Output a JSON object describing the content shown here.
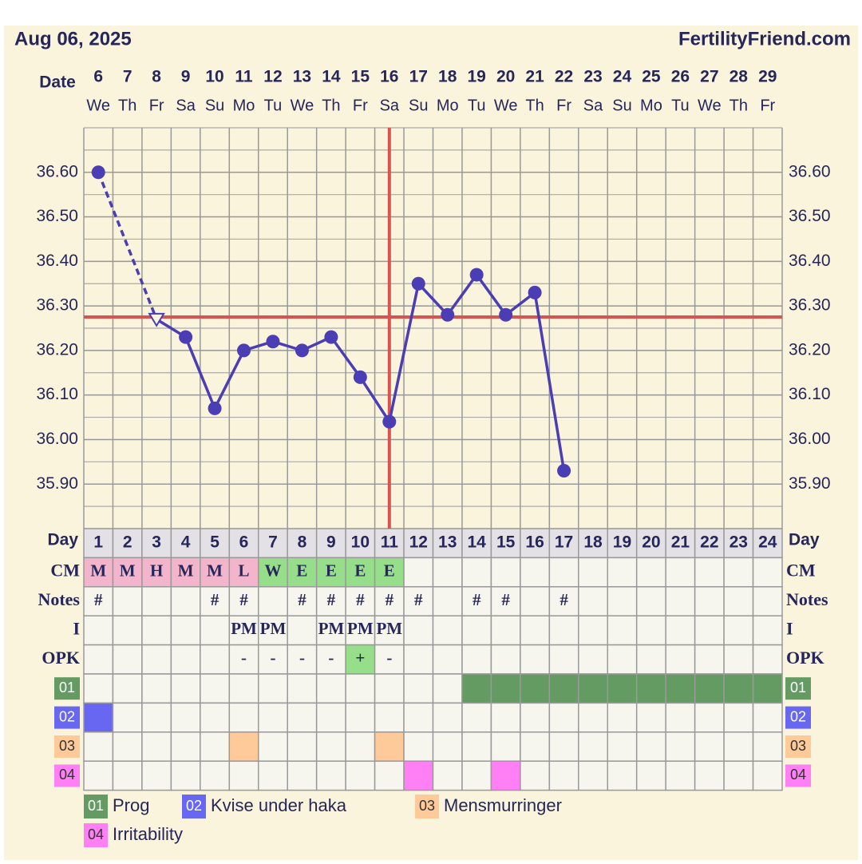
{
  "header": {
    "date": "Aug 06, 2025",
    "site": "FertilityFriend.com"
  },
  "chart_data": {
    "type": "line",
    "date_label": "Date",
    "day_label": "Day",
    "dates": [
      6,
      7,
      8,
      9,
      10,
      11,
      12,
      13,
      14,
      15,
      16,
      17,
      18,
      19,
      20,
      21,
      22,
      23,
      24,
      25,
      26,
      27,
      28,
      29
    ],
    "weekdays": [
      "We",
      "Th",
      "Fr",
      "Sa",
      "Su",
      "Mo",
      "Tu",
      "We",
      "Th",
      "Fr",
      "Sa",
      "Su",
      "Mo",
      "Tu",
      "We",
      "Th",
      "Fr",
      "Sa",
      "Su",
      "Mo",
      "Tu",
      "We",
      "Th",
      "Fr"
    ],
    "cycle_days": [
      1,
      2,
      3,
      4,
      5,
      6,
      7,
      8,
      9,
      10,
      11,
      12,
      13,
      14,
      15,
      16,
      17,
      18,
      19,
      20,
      21,
      22,
      23,
      24
    ],
    "values": [
      36.6,
      null,
      36.27,
      36.23,
      36.07,
      36.2,
      36.22,
      36.2,
      36.23,
      36.14,
      36.04,
      36.35,
      36.28,
      36.37,
      36.28,
      36.33,
      35.93,
      null,
      null,
      null,
      null,
      null,
      null,
      null
    ],
    "color": "#4b3db3",
    "excluded_points": [
      2
    ],
    "coverline": 36.275,
    "coverline_color": "#d9534f",
    "ovulation_day": 11,
    "ylim": [
      35.8,
      36.7
    ],
    "yticks": [
      {
        "value": 35.9,
        "label": "35.90"
      },
      {
        "value": 36.0,
        "label": "36.00"
      },
      {
        "value": 36.1,
        "label": "36.10"
      },
      {
        "value": 36.2,
        "label": "36.20"
      },
      {
        "value": 36.3,
        "label": "36.30"
      },
      {
        "value": 36.4,
        "label": "36.40"
      },
      {
        "value": 36.5,
        "label": "36.50"
      },
      {
        "value": 36.6,
        "label": "36.60"
      }
    ],
    "grid": true,
    "rows": [
      {
        "label": "CM",
        "cells": [
          "M",
          "M",
          "H",
          "M",
          "M",
          "L",
          "W",
          "E",
          "E",
          "E",
          "E",
          null,
          null,
          null,
          null,
          null,
          null,
          null,
          null,
          null,
          null,
          null,
          null,
          null
        ],
        "colors": {
          "M": "#f2b5cb",
          "H": "#f2b5cb",
          "L": "#f2b5cb",
          "W": "#97de8a",
          "E": "#97de8a"
        }
      },
      {
        "label": "Notes",
        "cells": [
          "#",
          null,
          null,
          null,
          "#",
          "#",
          null,
          "#",
          "#",
          "#",
          "#",
          "#",
          null,
          "#",
          "#",
          null,
          "#",
          null,
          null,
          null,
          null,
          null,
          null,
          null
        ],
        "colors": {}
      },
      {
        "label": "I",
        "cells": [
          null,
          null,
          null,
          null,
          null,
          "PM",
          "PM",
          null,
          "PM",
          "PM",
          "PM",
          null,
          null,
          null,
          null,
          null,
          null,
          null,
          null,
          null,
          null,
          null,
          null,
          null
        ],
        "colors": {}
      },
      {
        "label": "OPK",
        "cells": [
          null,
          null,
          null,
          null,
          null,
          "-",
          "-",
          "-",
          "-",
          "+",
          "-",
          null,
          null,
          null,
          null,
          null,
          null,
          null,
          null,
          null,
          null,
          null,
          null,
          null
        ],
        "colors": {
          "+": "#97de8a"
        }
      }
    ],
    "custom_rows": [
      {
        "code": "01",
        "name": "Prog",
        "color": "#639b63",
        "days": [
          14,
          15,
          16,
          17,
          18,
          19,
          20,
          21,
          22,
          23,
          24
        ]
      },
      {
        "code": "02",
        "name": "Kvise under haka",
        "color": "#6767f2",
        "days": [
          1
        ]
      },
      {
        "code": "03",
        "name": "Mensmurringer",
        "color": "#ffca99",
        "days": [
          6,
          11
        ]
      },
      {
        "code": "04",
        "name": "Irritability",
        "color": "#ff7ff5",
        "days": [
          12,
          15
        ]
      }
    ]
  }
}
